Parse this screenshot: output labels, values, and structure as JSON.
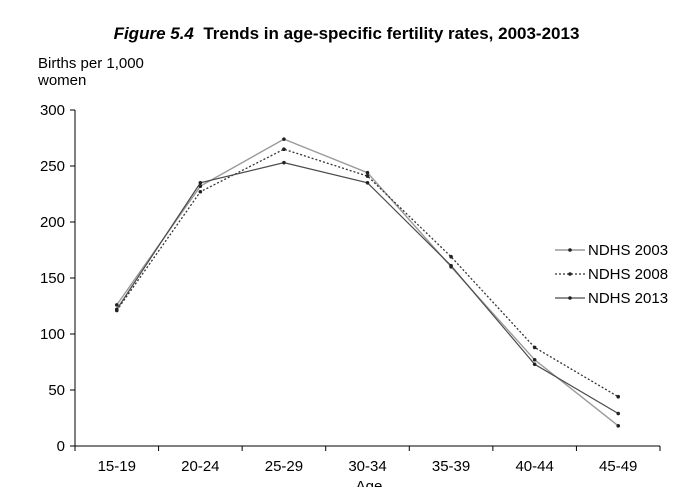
{
  "title": {
    "figure_label": "Figure 5.4",
    "text": "Trends in age-specific fertility rates, 2003-2013"
  },
  "chart_data": {
    "type": "line",
    "title": "Figure 5.4 Trends in age-specific fertility rates, 2003-2013",
    "ylabel_line1": "Births per 1,000",
    "ylabel_line2": "women",
    "xlabel": "Age",
    "categories": [
      "15-19",
      "20-24",
      "25-29",
      "30-34",
      "35-39",
      "40-44",
      "45-49"
    ],
    "ylim": [
      0,
      300
    ],
    "yticks": [
      0,
      50,
      100,
      150,
      200,
      250,
      300
    ],
    "grid": false,
    "legend_position": "right",
    "series": [
      {
        "name": "NDHS 2003",
        "style": "solid",
        "color": "#9a9a9a",
        "values": [
          126,
          232,
          274,
          244,
          160,
          77,
          18
        ]
      },
      {
        "name": "NDHS 2008",
        "style": "dotted",
        "color": "#333333",
        "values": [
          121,
          227,
          265,
          241,
          169,
          88,
          44
        ]
      },
      {
        "name": "NDHS 2013",
        "style": "solid-dark",
        "color": "#4a4a4a",
        "values": [
          122,
          235,
          253,
          235,
          161,
          73,
          29
        ]
      }
    ]
  }
}
